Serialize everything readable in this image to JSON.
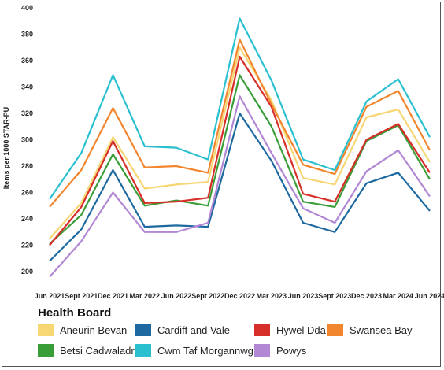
{
  "chart_data": {
    "type": "line",
    "title": "",
    "xlabel": "",
    "ylabel": "Items per 1000 STAR-PU",
    "ylim": [
      190,
      400
    ],
    "yticks": [
      200,
      220,
      240,
      260,
      280,
      300,
      320,
      340,
      360,
      380,
      400
    ],
    "grid": false,
    "categories": [
      "Jun 2021",
      "Sept 2021",
      "Dec 2021",
      "Mar 2022",
      "Jun 2022",
      "Sept 2022",
      "Dec 2022",
      "Mar 2023",
      "Jun 2023",
      "Sept 2023",
      "Dec 2023",
      "Mar 2024",
      "Jun 2024"
    ],
    "legend_title": "Health Board",
    "legend_position": "bottom",
    "series": [
      {
        "name": "Aneurin Bevan",
        "color": "#f7d774",
        "values": [
          225,
          252,
          302,
          263,
          266,
          268,
          370,
          330,
          271,
          266,
          317,
          323,
          283
        ]
      },
      {
        "name": "Betsi Cadwaladr",
        "color": "#3a9e38",
        "values": [
          221,
          243,
          289,
          250,
          254,
          250,
          349,
          310,
          253,
          249,
          299,
          311,
          270
        ]
      },
      {
        "name": "Cardiff and Vale",
        "color": "#1e6aa0",
        "values": [
          208,
          232,
          277,
          234,
          235,
          234,
          320,
          284,
          237,
          230,
          267,
          275,
          246
        ]
      },
      {
        "name": "Cwm Taf Morgannwg",
        "color": "#2ac0cf",
        "values": [
          255,
          290,
          349,
          295,
          294,
          285,
          392,
          345,
          285,
          277,
          329,
          346,
          302
        ]
      },
      {
        "name": "Hywel Dda",
        "color": "#d62e28",
        "values": [
          220,
          249,
          299,
          252,
          253,
          256,
          363,
          325,
          259,
          253,
          300,
          312,
          275
        ]
      },
      {
        "name": "Powys",
        "color": "#b287d4",
        "values": [
          196,
          223,
          260,
          230,
          230,
          237,
          333,
          290,
          248,
          237,
          276,
          292,
          257
        ]
      },
      {
        "name": "Swansea Bay",
        "color": "#f2862e",
        "values": [
          249,
          277,
          324,
          279,
          280,
          275,
          376,
          327,
          281,
          274,
          325,
          337,
          292
        ]
      }
    ]
  }
}
